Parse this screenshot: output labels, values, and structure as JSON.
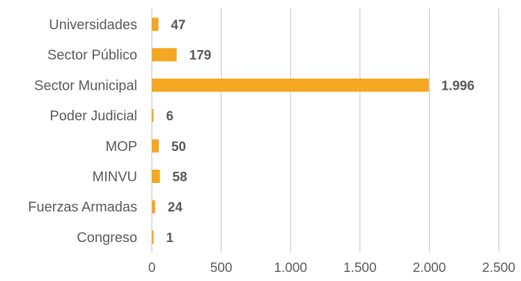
{
  "chart_data": {
    "type": "bar",
    "orientation": "horizontal",
    "categories": [
      "Universidades",
      "Sector Público",
      "Sector Municipal",
      "Poder Judicial",
      "MOP",
      "MINVU",
      "Fuerzas Armadas",
      "Congreso"
    ],
    "values": [
      47,
      179,
      1996,
      6,
      50,
      58,
      24,
      1
    ],
    "value_labels": [
      "47",
      "179",
      "1.996",
      "6",
      "50",
      "58",
      "24",
      "1"
    ],
    "title": "",
    "xlabel": "",
    "ylabel": "",
    "xlim": [
      0,
      2500
    ],
    "x_ticks": [
      0,
      500,
      1000,
      1500,
      2000,
      2500
    ],
    "x_tick_labels": [
      "0",
      "500",
      "1.000",
      "1.500",
      "2.000",
      "2.500"
    ],
    "grid": "vertical",
    "legend": "none",
    "bar_color": "#f5a623"
  }
}
